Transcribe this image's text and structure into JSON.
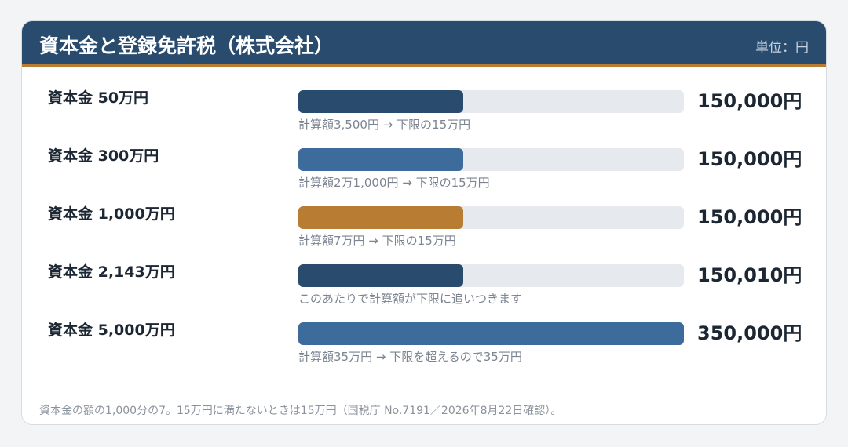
{
  "header": {
    "title": "資本金と登録免許税（株式会社）",
    "unit": "単位：円"
  },
  "colors": {
    "header_bg": "#284b6e",
    "accent": "#b87d32",
    "bar_dark": "#284b6e",
    "bar_blue": "#3d6b9c",
    "bar_highlight": "#b87d32",
    "track": "#e6e9ee"
  },
  "chart_data": {
    "type": "bar",
    "orientation": "horizontal",
    "categories": [
      "資本金 50万円",
      "資本金 300万円",
      "資本金 1,000万円",
      "資本金 2,143万円",
      "資本金 5,000万円"
    ],
    "values": [
      150000,
      150000,
      150000,
      150010,
      350000
    ],
    "value_labels": [
      "150,000円",
      "150,000円",
      "150,000円",
      "150,010円",
      "350,000円"
    ],
    "annotations": [
      "計算額3,500円 → 下限の15万円",
      "計算額2万1,000円 → 下限の15万円",
      "計算額7万円 → 下限の15万円",
      "このあたりで計算額が下限に追いつきます",
      "計算額35万円 → 下限を超えるので35万円"
    ],
    "bar_colors": [
      "#284b6e",
      "#3d6b9c",
      "#b87d32",
      "#284b6e",
      "#3d6b9c"
    ],
    "xlim": [
      0,
      350000
    ],
    "grid": false
  },
  "footer": {
    "note": "資本金の額の1,000分の7。15万円に満たないときは15万円（国税庁 No.7191／2026年8月22日確認）。"
  }
}
